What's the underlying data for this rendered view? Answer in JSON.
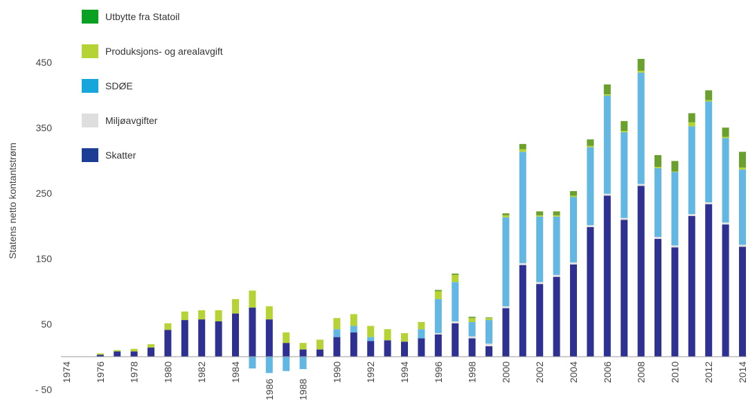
{
  "chart_data": {
    "type": "bar",
    "stacked": true,
    "title": "",
    "xlabel": "",
    "ylabel": "Statens netto kontantstrøm",
    "ylim": [
      -50,
      470
    ],
    "yticks": [
      -50,
      50,
      150,
      250,
      350,
      450
    ],
    "ytick_labels": [
      "- 50",
      "50",
      "150",
      "250",
      "350",
      "450"
    ],
    "grid": false,
    "legend_position": "top-left",
    "categories": [
      "1974",
      "1975",
      "1976",
      "1977",
      "1978",
      "1979",
      "1980",
      "1981",
      "1982",
      "1983",
      "1984",
      "1985",
      "1986",
      "1987",
      "1988",
      "1989",
      "1990",
      "1991",
      "1992",
      "1993",
      "1994",
      "1995",
      "1996",
      "1997",
      "1998",
      "1999",
      "2000",
      "2001",
      "2002",
      "2003",
      "2004",
      "2005",
      "2006",
      "2007",
      "2008",
      "2009",
      "2010",
      "2011",
      "2012",
      "2013",
      "2014"
    ],
    "xtick_labels": [
      "1974",
      "1976",
      "1978",
      "1980",
      "1982",
      "1984",
      "1986",
      "1988",
      "1990",
      "1992",
      "1994",
      "1996",
      "1998",
      "2000",
      "2002",
      "2004",
      "2006",
      "2008",
      "2010",
      "2012",
      "2014"
    ],
    "series": [
      {
        "name": "Skatter",
        "color": "#2e3191",
        "values": [
          0.5,
          0.5,
          3,
          8,
          8,
          14,
          41,
          56,
          57,
          54,
          66,
          75,
          57,
          21,
          11,
          11,
          30,
          37,
          24,
          25,
          23,
          28,
          34,
          51,
          28,
          16,
          74,
          140,
          111,
          122,
          141,
          198,
          246,
          209,
          261,
          180,
          167,
          215,
          233,
          202,
          168
        ]
      },
      {
        "name": "Miljøavgifter",
        "color": "#e0e0e0",
        "values": [
          0,
          0,
          0,
          0,
          0,
          0,
          0,
          0,
          0,
          0,
          0,
          0,
          0,
          0,
          0,
          0,
          0,
          0,
          0,
          0,
          0,
          0,
          2,
          3,
          3,
          4,
          3,
          3,
          3,
          3,
          3,
          3,
          3,
          3,
          3,
          3,
          3,
          3,
          3,
          3,
          3
        ]
      },
      {
        "name": "SDØE",
        "color": "#63b8e3",
        "values": [
          0,
          0,
          0,
          0,
          0,
          0,
          0,
          0,
          0,
          0,
          0,
          -18,
          -25,
          -22,
          -19,
          0,
          12,
          10,
          6,
          0,
          0,
          14,
          52,
          60,
          22,
          36,
          136,
          170,
          100,
          89,
          100,
          119,
          150,
          131,
          170,
          105,
          112,
          134,
          154,
          129,
          115
        ]
      },
      {
        "name": "Produksjons- og arealavgift",
        "color": "#b5d334",
        "values": [
          0,
          0,
          2,
          2,
          4,
          5,
          10,
          13,
          14,
          17,
          22,
          26,
          20,
          16,
          10,
          15,
          17,
          18,
          17,
          17,
          13,
          11,
          12,
          11,
          6,
          3,
          3,
          4,
          2,
          2,
          2,
          2,
          2,
          2,
          3,
          2,
          1,
          6,
          2,
          2,
          3
        ]
      },
      {
        "name": "Utbytte fra Statoil",
        "color": "#6aa12e",
        "values": [
          0,
          0,
          0,
          0,
          0,
          0,
          0,
          0,
          0,
          0,
          0,
          0,
          0,
          0,
          0,
          0,
          0,
          0,
          0,
          0,
          0,
          0,
          2,
          2,
          2,
          1,
          3,
          8,
          6,
          6,
          7,
          10,
          15,
          15,
          18,
          18,
          16,
          14,
          15,
          14,
          24
        ]
      }
    ]
  },
  "legend": [
    {
      "label": "Utbytte fra Statoil",
      "color": "#0aa022"
    },
    {
      "label": "Produksjons- og arealavgift",
      "color": "#b5d334"
    },
    {
      "label": "SDØE",
      "color": "#17a6dc"
    },
    {
      "label": "Miljøavgifter",
      "color": "#dedede"
    },
    {
      "label": "Skatter",
      "color": "#1b3e94"
    }
  ]
}
